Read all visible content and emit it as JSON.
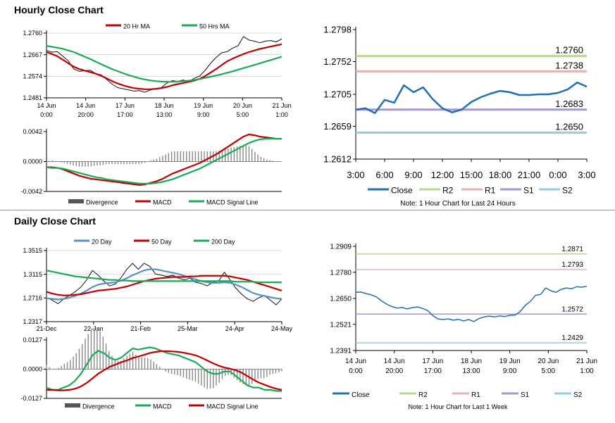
{
  "page": {
    "hourly_title": "Hourly Close Chart",
    "daily_title": "Daily Close Chart"
  },
  "colors": {
    "close": "#1f6fb5",
    "ma_short": "#c00000",
    "ma_long": "#1aaa55",
    "r2": "#b8d68f",
    "r1": "#e8b0b0",
    "s1": "#a898cf",
    "s2": "#92cde0",
    "divergence": "#888888",
    "axis": "#000000"
  },
  "chart_data": [
    {
      "id": "hourly-price",
      "type": "line",
      "title": "Hourly Close Chart",
      "x_ticks": [
        "14 Jun\n0:00",
        "14 Jun\n20:00",
        "17 Jun\n17:00",
        "18 Jun\n13:00",
        "19 Jun\n9:00",
        "20 Jun\n5:00",
        "21 Jun\n1:00"
      ],
      "y_ticks": [
        "1.2760",
        "1.2667",
        "1.2574",
        "1.2481"
      ],
      "ylim": [
        1.2481,
        1.276
      ],
      "legend": [
        "20 Hr MA",
        "50 Hrs MA"
      ],
      "series": [
        {
          "name": "Close",
          "values": [
            1.2685,
            1.2678,
            1.268,
            1.266,
            1.264,
            1.2605,
            1.2595,
            1.2598,
            1.26,
            1.2585,
            1.258,
            1.256,
            1.254,
            1.2525,
            1.252,
            1.2515,
            1.251,
            1.2512,
            1.2505,
            1.2515,
            1.252,
            1.2525,
            1.2545,
            1.2555,
            1.2552,
            1.2558,
            1.255,
            1.2565,
            1.2575,
            1.26,
            1.263,
            1.2655,
            1.2675,
            1.268,
            1.2695,
            1.2705,
            1.2745,
            1.273,
            1.2725,
            1.2718,
            1.2725,
            1.2728,
            1.2722,
            1.2735
          ]
        },
        {
          "name": "20 Hr MA",
          "values": [
            1.2678,
            1.267,
            1.266,
            1.2645,
            1.263,
            1.2615,
            1.2605,
            1.2598,
            1.2592,
            1.2585,
            1.2576,
            1.2565,
            1.2553,
            1.2543,
            1.2535,
            1.2528,
            1.2523,
            1.252,
            1.2518,
            1.2518,
            1.252,
            1.2523,
            1.2528,
            1.2535,
            1.254,
            1.2545,
            1.255,
            1.2555,
            1.2563,
            1.2575,
            1.259,
            1.2605,
            1.2622,
            1.2638,
            1.265,
            1.266,
            1.267,
            1.2678,
            1.2685,
            1.2692,
            1.2697,
            1.2702,
            1.2707,
            1.2712
          ]
        },
        {
          "name": "50 Hrs MA",
          "values": [
            1.2705,
            1.2701,
            1.2697,
            1.2692,
            1.2685,
            1.2678,
            1.2668,
            1.2658,
            1.2648,
            1.2637,
            1.2626,
            1.2615,
            1.2605,
            1.2596,
            1.2587,
            1.2579,
            1.2572,
            1.2565,
            1.256,
            1.2556,
            1.2553,
            1.2551,
            1.255,
            1.255,
            1.2551,
            1.2553,
            1.2555,
            1.2558,
            1.2562,
            1.2567,
            1.2572,
            1.2577,
            1.2583,
            1.2589,
            1.2595,
            1.2602,
            1.2609,
            1.2616,
            1.2623,
            1.263,
            1.2637,
            1.2644,
            1.2651,
            1.2658
          ]
        }
      ]
    },
    {
      "id": "hourly-macd",
      "type": "line",
      "y_ticks": [
        "0.0042",
        "0.0000",
        "-0.0042"
      ],
      "ylim": [
        -0.0042,
        0.0042
      ],
      "legend": [
        "Divergence",
        "MACD",
        "MACD Signal Line"
      ],
      "series": [
        {
          "name": "MACD",
          "values": [
            -0.0008,
            -0.0008,
            -0.0009,
            -0.0011,
            -0.0014,
            -0.0017,
            -0.002,
            -0.0022,
            -0.0024,
            -0.0025,
            -0.0026,
            -0.0027,
            -0.0028,
            -0.0029,
            -0.003,
            -0.0031,
            -0.0032,
            -0.0033,
            -0.0032,
            -0.003,
            -0.0028,
            -0.0025,
            -0.0021,
            -0.0017,
            -0.0014,
            -0.0011,
            -0.0008,
            -0.0005,
            -0.0002,
            0.0002,
            0.0006,
            0.001,
            0.0015,
            0.002,
            0.0025,
            0.003,
            0.0035,
            0.0038,
            0.0037,
            0.0035,
            0.0034,
            0.0033,
            0.0032,
            0.0032
          ]
        },
        {
          "name": "MACD Signal Line",
          "values": [
            -0.0008,
            -0.0009,
            -0.0009,
            -0.001,
            -0.0012,
            -0.0014,
            -0.0016,
            -0.0018,
            -0.002,
            -0.0022,
            -0.0023,
            -0.0025,
            -0.0026,
            -0.0027,
            -0.0028,
            -0.0029,
            -0.003,
            -0.0031,
            -0.0031,
            -0.0031,
            -0.003,
            -0.0029,
            -0.0027,
            -0.0025,
            -0.0022,
            -0.0019,
            -0.0016,
            -0.0013,
            -0.001,
            -0.0006,
            -0.0002,
            0.0002,
            0.0006,
            0.001,
            0.0014,
            0.0018,
            0.0022,
            0.0026,
            0.0029,
            0.0031,
            0.0032,
            0.0032,
            0.0032,
            0.0032
          ]
        }
      ]
    },
    {
      "id": "hourly-24h",
      "type": "line",
      "x_ticks": [
        "3:00",
        "6:00",
        "9:00",
        "12:00",
        "15:00",
        "18:00",
        "21:00",
        "0:00",
        "3:00"
      ],
      "y_ticks": [
        "1.2798",
        "1.2752",
        "1.2705",
        "1.2659",
        "1.2612"
      ],
      "ylim": [
        1.2612,
        1.2798
      ],
      "levels": [
        {
          "name": "R2",
          "value": 1.276,
          "label": "1.2760"
        },
        {
          "name": "R1",
          "value": 1.2738,
          "label": "1.2738"
        },
        {
          "name": "S1",
          "value": 1.2683,
          "label": "1.2683"
        },
        {
          "name": "S2",
          "value": 1.265,
          "label": "1.2650"
        }
      ],
      "legend": [
        "Close",
        "R2",
        "R1",
        "S1",
        "S2"
      ],
      "note": "Note: 1 Hour Chart for Last 24 Hours",
      "series": [
        {
          "name": "Close",
          "values": [
            1.2683,
            1.2685,
            1.2678,
            1.2697,
            1.2693,
            1.2718,
            1.2708,
            1.2715,
            1.2698,
            1.2685,
            1.2679,
            1.2683,
            1.2694,
            1.2701,
            1.2706,
            1.271,
            1.2708,
            1.2704,
            1.2704,
            1.2705,
            1.2705,
            1.2707,
            1.2712,
            1.2722,
            1.2716
          ]
        }
      ]
    },
    {
      "id": "daily-price",
      "type": "line",
      "title": "Daily Close Chart",
      "x_ticks": [
        "21-Dec",
        "22-Jan",
        "21-Feb",
        "25-Mar",
        "24-Apr",
        "24-May"
      ],
      "y_ticks": [
        "1.3515",
        "1.3115",
        "1.2716",
        "1.2317"
      ],
      "ylim": [
        1.2317,
        1.3515
      ],
      "legend": [
        "20 Day",
        "50 Day",
        "200 Day"
      ],
      "series": [
        {
          "name": "Close",
          "values": [
            1.272,
            1.268,
            1.262,
            1.27,
            1.276,
            1.282,
            1.29,
            1.302,
            1.318,
            1.31,
            1.3,
            1.292,
            1.295,
            1.306,
            1.32,
            1.33,
            1.32,
            1.33,
            1.325,
            1.312,
            1.31,
            1.308,
            1.31,
            1.305,
            1.302,
            1.305,
            1.298,
            1.296,
            1.292,
            1.298,
            1.3,
            1.315,
            1.302,
            1.288,
            1.278,
            1.27,
            1.266,
            1.272,
            1.276,
            1.268,
            1.26,
            1.27
          ]
        },
        {
          "name": "20 Day",
          "values": [
            1.271,
            1.27,
            1.269,
            1.27,
            1.272,
            1.275,
            1.279,
            1.284,
            1.29,
            1.294,
            1.296,
            1.297,
            1.298,
            1.301,
            1.305,
            1.31,
            1.314,
            1.318,
            1.32,
            1.32,
            1.318,
            1.316,
            1.314,
            1.312,
            1.309,
            1.306,
            1.303,
            1.3,
            1.298,
            1.297,
            1.297,
            1.298,
            1.297,
            1.294,
            1.29,
            1.285,
            1.28,
            1.277,
            1.275,
            1.273,
            1.271,
            1.27
          ]
        },
        {
          "name": "50 Day",
          "values": [
            1.282,
            1.279,
            1.277,
            1.276,
            1.276,
            1.277,
            1.278,
            1.28,
            1.282,
            1.284,
            1.285,
            1.286,
            1.287,
            1.289,
            1.291,
            1.294,
            1.297,
            1.3,
            1.302,
            1.304,
            1.305,
            1.306,
            1.307,
            1.307,
            1.307,
            1.308,
            1.308,
            1.309,
            1.309,
            1.309,
            1.309,
            1.309,
            1.308,
            1.306,
            1.304,
            1.302,
            1.299,
            1.296,
            1.293,
            1.29,
            1.287,
            1.284
          ]
        },
        {
          "name": "200 Day",
          "values": [
            1.318,
            1.316,
            1.314,
            1.312,
            1.31,
            1.308,
            1.307,
            1.306,
            1.305,
            1.304,
            1.303,
            1.302,
            1.302,
            1.301,
            1.301,
            1.3,
            1.3,
            1.3,
            1.3,
            1.3,
            1.3,
            1.3,
            1.3,
            1.3,
            1.3,
            1.3,
            1.3,
            1.3,
            1.3,
            1.3,
            1.3,
            1.3,
            1.3,
            1.299,
            1.299,
            1.299,
            1.299,
            1.298,
            1.298,
            1.298,
            1.298,
            1.298
          ]
        }
      ]
    },
    {
      "id": "daily-macd",
      "type": "line",
      "y_ticks": [
        "0.0127",
        "0.0000",
        "-0.0127"
      ],
      "ylim": [
        -0.0127,
        0.0127
      ],
      "legend": [
        "Divergence",
        "MACD",
        "MACD Signal Line"
      ],
      "series": [
        {
          "name": "MACD",
          "values": [
            -0.008,
            -0.009,
            -0.009,
            -0.008,
            -0.007,
            -0.005,
            -0.002,
            0.002,
            0.006,
            0.008,
            0.007,
            0.005,
            0.004,
            0.005,
            0.007,
            0.009,
            0.0085,
            0.009,
            0.0095,
            0.009,
            0.008,
            0.007,
            0.0065,
            0.006,
            0.005,
            0.004,
            0.003,
            0.001,
            -0.001,
            -0.002,
            -0.002,
            -0.001,
            -0.001,
            -0.003,
            -0.005,
            -0.007,
            -0.008,
            -0.008,
            -0.009,
            -0.009,
            -0.0095,
            -0.0095
          ]
        },
        {
          "name": "MACD Signal Line",
          "values": [
            -0.009,
            -0.009,
            -0.0092,
            -0.0092,
            -0.009,
            -0.0085,
            -0.0075,
            -0.006,
            -0.004,
            -0.002,
            -0.0005,
            0.001,
            0.002,
            0.003,
            0.0038,
            0.0048,
            0.0055,
            0.0062,
            0.007,
            0.0075,
            0.0078,
            0.0078,
            0.0077,
            0.0075,
            0.0071,
            0.0066,
            0.006,
            0.005,
            0.0038,
            0.0026,
            0.0015,
            0.0007,
            0.0002,
            -0.0005,
            -0.0015,
            -0.003,
            -0.0045,
            -0.0058,
            -0.0068,
            -0.0077,
            -0.0085,
            -0.009
          ]
        }
      ]
    },
    {
      "id": "daily-week",
      "type": "line",
      "x_ticks": [
        "14 Jun\n0:00",
        "14 Jun\n20:00",
        "17 Jun\n17:00",
        "18 Jun\n13:00",
        "19 Jun\n9:00",
        "20 Jun\n5:00",
        "21 Jun\n1:00"
      ],
      "y_ticks": [
        "1.2909",
        "1.2780",
        "1.2650",
        "1.2521",
        "1.2391"
      ],
      "ylim": [
        1.2391,
        1.2909
      ],
      "levels": [
        {
          "name": "R2",
          "value": 1.2871,
          "label": "1.2871"
        },
        {
          "name": "R1",
          "value": 1.2793,
          "label": "1.2793"
        },
        {
          "name": "S1",
          "value": 1.2572,
          "label": "1.2572"
        },
        {
          "name": "S2",
          "value": 1.2429,
          "label": "1.2429"
        }
      ],
      "legend": [
        "Close",
        "R2",
        "R1",
        "S1",
        "S2"
      ],
      "note": "Note: 1 Hour Chart for Last 1 Week",
      "series": [
        {
          "name": "Close",
          "values": [
            1.268,
            1.2682,
            1.2674,
            1.2668,
            1.2658,
            1.2638,
            1.2622,
            1.261,
            1.2602,
            1.2605,
            1.2598,
            1.2604,
            1.2608,
            1.26,
            1.259,
            1.2565,
            1.2548,
            1.2545,
            1.2548,
            1.2542,
            1.2546,
            1.2538,
            1.2545,
            1.2535,
            1.255,
            1.2558,
            1.2562,
            1.2558,
            1.2563,
            1.256,
            1.2566,
            1.2567,
            1.2584,
            1.2615,
            1.2635,
            1.2665,
            1.267,
            1.2702,
            1.2688,
            1.268,
            1.2695,
            1.2702,
            1.2698,
            1.2708,
            1.2706,
            1.271
          ]
        }
      ]
    }
  ]
}
